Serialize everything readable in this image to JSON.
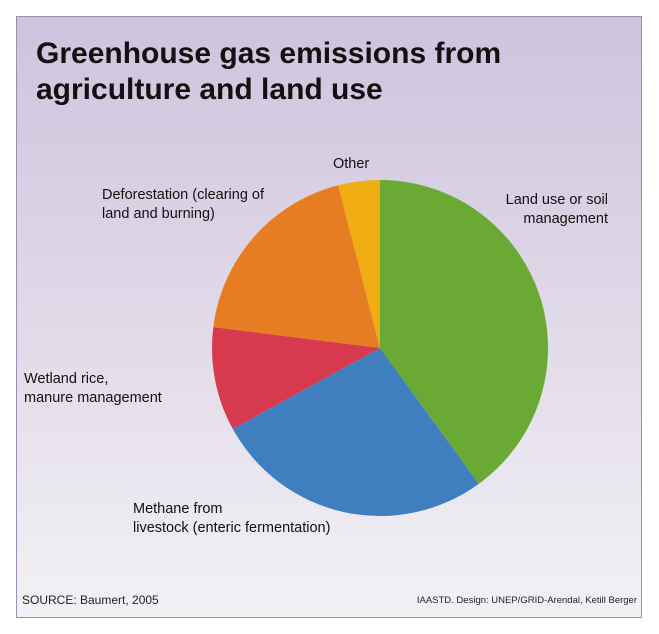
{
  "chart_data": {
    "type": "pie",
    "title": "Greenhouse gas emissions from agriculture and land use",
    "slices": [
      {
        "label": "Land use or soil\nmanagement",
        "value": 40,
        "color": "#6aaa34"
      },
      {
        "label": "Methane from\nlivestock (enteric fermentation)",
        "value": 27,
        "color": "#3f7fbf"
      },
      {
        "label": "Wetland rice,\nmanure management",
        "value": 10,
        "color": "#d73a4e"
      },
      {
        "label": "Deforestation (clearing of\nland and burning)",
        "value": 19,
        "color": "#e67d22"
      },
      {
        "label": "Other",
        "value": 4,
        "color": "#f0ad13"
      }
    ]
  },
  "source": "SOURCE: Baumert, 2005",
  "credit": "IAASTD. Design: UNEP/GRID-Arendal, Ketill Berger"
}
